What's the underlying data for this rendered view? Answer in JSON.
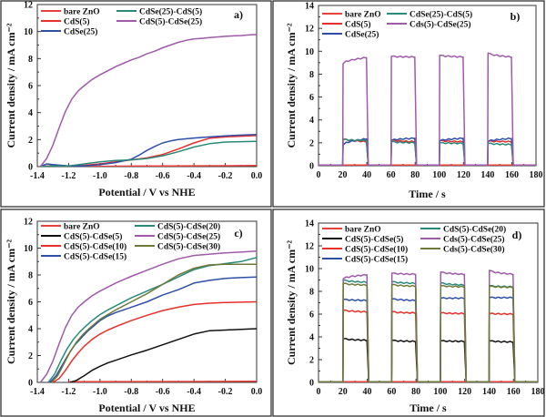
{
  "chart_data": [
    {
      "id": "a",
      "type": "line",
      "panel_label": "a)",
      "xlabel": "Potential / V vs NHE",
      "ylabel": "Current density / mA cm⁻²",
      "xlim": [
        -1.4,
        0.0
      ],
      "ylim": [
        0,
        12
      ],
      "xticks": [
        -1.4,
        -1.2,
        -1.0,
        -0.8,
        -0.6,
        -0.4,
        -0.2,
        0.0
      ],
      "xtick_labels": [
        "-1.4",
        "-1.2",
        "-1.0",
        "-0.8",
        "-0.6",
        "-0.4",
        "-0.2",
        "0.0"
      ],
      "yticks": [
        0,
        2,
        4,
        6,
        8,
        10,
        12
      ],
      "ytick_labels": [
        "0",
        "2",
        "4",
        "6",
        "8",
        "10",
        "12"
      ],
      "legend_position": "top-left",
      "legend_columns": 2,
      "series": [
        {
          "name": "bare ZnO",
          "color": "#e8413c",
          "x": [
            -1.38,
            -1.2,
            -1.0,
            -0.8,
            -0.6,
            -0.4,
            -0.2,
            0.0
          ],
          "y": [
            0.0,
            0.02,
            0.03,
            0.04,
            0.05,
            0.06,
            0.07,
            0.08
          ]
        },
        {
          "name": "CdS(5)",
          "color": "#e8302a",
          "x": [
            -1.38,
            -1.3,
            -1.2,
            -1.1,
            -1.0,
            -0.9,
            -0.8,
            -0.7,
            -0.6,
            -0.5,
            -0.4,
            -0.3,
            -0.2,
            -0.1,
            0.0
          ],
          "y": [
            0.0,
            0.08,
            0.05,
            0.1,
            0.2,
            0.35,
            0.5,
            0.65,
            0.9,
            1.3,
            1.75,
            2.1,
            2.2,
            2.25,
            2.3
          ]
        },
        {
          "name": "CdSe(25)",
          "color": "#2e4fa8",
          "x": [
            -1.38,
            -1.34,
            -1.3,
            -1.2,
            -1.1,
            -1.0,
            -0.9,
            -0.8,
            -0.75,
            -0.7,
            -0.65,
            -0.6,
            -0.55,
            -0.5,
            -0.4,
            -0.3,
            -0.2,
            -0.1,
            0.0
          ],
          "y": [
            0.0,
            0.2,
            0.15,
            0.05,
            0.05,
            0.15,
            0.3,
            0.55,
            0.85,
            1.2,
            1.5,
            1.75,
            1.9,
            2.0,
            2.12,
            2.2,
            2.28,
            2.33,
            2.38
          ]
        },
        {
          "name": "CdSe(25)-CdS(5)",
          "color": "#2a8a7a",
          "x": [
            -1.38,
            -1.3,
            -1.2,
            -1.1,
            -1.0,
            -0.9,
            -0.8,
            -0.7,
            -0.6,
            -0.5,
            -0.4,
            -0.3,
            -0.2,
            -0.1,
            0.0
          ],
          "y": [
            0.0,
            0.05,
            0.05,
            0.2,
            0.35,
            0.45,
            0.5,
            0.6,
            0.8,
            1.1,
            1.45,
            1.7,
            1.82,
            1.85,
            1.87
          ]
        },
        {
          "name": "CdS(5)-CdSe(25)",
          "color": "#a05aaa",
          "x": [
            -1.38,
            -1.34,
            -1.3,
            -1.26,
            -1.22,
            -1.18,
            -1.14,
            -1.1,
            -1.05,
            -1.0,
            -0.95,
            -0.9,
            -0.85,
            -0.8,
            -0.75,
            -0.7,
            -0.65,
            -0.6,
            -0.55,
            -0.5,
            -0.45,
            -0.4,
            -0.35,
            -0.3,
            -0.25,
            -0.2,
            -0.15,
            -0.1,
            -0.05,
            0.0
          ],
          "y": [
            0.0,
            0.6,
            1.6,
            2.9,
            4.1,
            5.0,
            5.6,
            6.0,
            6.45,
            6.8,
            7.1,
            7.4,
            7.65,
            7.9,
            8.1,
            8.35,
            8.55,
            8.8,
            9.0,
            9.2,
            9.35,
            9.45,
            9.5,
            9.55,
            9.6,
            9.65,
            9.68,
            9.7,
            9.75,
            9.78
          ]
        }
      ]
    },
    {
      "id": "b",
      "type": "line",
      "panel_label": "b)",
      "xlabel": "Time / s",
      "ylabel": "Current density / mA cm⁻²",
      "xlim": [
        0,
        180
      ],
      "ylim": [
        0,
        14
      ],
      "xticks": [
        0,
        20,
        40,
        60,
        80,
        100,
        120,
        140,
        160,
        180
      ],
      "xtick_labels": [
        "0",
        "20",
        "40",
        "60",
        "80",
        "100",
        "120",
        "140",
        "160",
        "180"
      ],
      "yticks": [
        0,
        2,
        4,
        6,
        8,
        10,
        12,
        14
      ],
      "ytick_labels": [
        "0",
        "2",
        "4",
        "6",
        "8",
        "10",
        "12",
        "14"
      ],
      "legend_position": "top-left",
      "legend_columns": 2,
      "pulse_on": [
        [
          20,
          40
        ],
        [
          60,
          80
        ],
        [
          100,
          120
        ],
        [
          140,
          160
        ]
      ],
      "series": [
        {
          "name": "bare ZnO",
          "color": "#e8413c",
          "on_start": [
            0.06,
            0.06,
            0.06,
            0.06
          ],
          "on_end": [
            0.06,
            0.06,
            0.06,
            0.06
          ]
        },
        {
          "name": "CdS(5)",
          "color": "#e8302a",
          "on_start": [
            2.35,
            2.25,
            2.2,
            2.15
          ],
          "on_end": [
            2.1,
            2.1,
            2.1,
            2.1
          ]
        },
        {
          "name": "CdSe(25)",
          "color": "#2e4fa8",
          "on_start": [
            1.8,
            2.2,
            2.15,
            2.1
          ],
          "on_end": [
            2.35,
            2.4,
            2.4,
            2.38
          ]
        },
        {
          "name": "CdSe(25)-CdS(5)",
          "color": "#2a8a7a",
          "on_start": [
            2.3,
            2.1,
            2.0,
            1.95
          ],
          "on_end": [
            2.2,
            2.0,
            1.95,
            1.85
          ]
        },
        {
          "name": "Cds(5)-CdSe(25)",
          "color": "#a05aaa",
          "on_start": [
            8.9,
            9.55,
            9.65,
            9.85
          ],
          "on_end": [
            9.45,
            9.5,
            9.5,
            9.5
          ]
        }
      ]
    },
    {
      "id": "c",
      "type": "line",
      "panel_label": "c)",
      "xlabel": "Potential / V vs NHE",
      "ylabel": "Current density / mA cm⁻²",
      "xlim": [
        -1.4,
        0.0
      ],
      "ylim": [
        0,
        12
      ],
      "xticks": [
        -1.4,
        -1.2,
        -1.0,
        -0.8,
        -0.6,
        -0.4,
        -0.2,
        0.0
      ],
      "xtick_labels": [
        "-1.4",
        "-1.2",
        "-1.0",
        "-0.8",
        "-0.6",
        "-0.4",
        "-0.2",
        "0.0"
      ],
      "yticks": [
        0,
        2,
        4,
        6,
        8,
        10,
        12
      ],
      "ytick_labels": [
        "0",
        "2",
        "4",
        "6",
        "8",
        "10",
        "12"
      ],
      "legend_position": "top-left",
      "legend_columns": 2,
      "series": [
        {
          "name": "bare ZnO",
          "color": "#e8413c",
          "x": [
            -1.2,
            -0.8,
            -0.4,
            0.0
          ],
          "y": [
            0.05,
            0.06,
            0.07,
            0.08
          ]
        },
        {
          "name": "CdS(5)-CdSe(5)",
          "color": "#111111",
          "x": [
            -1.19,
            -1.15,
            -1.1,
            -1.05,
            -1.0,
            -0.95,
            -0.9,
            -0.8,
            -0.7,
            -0.6,
            -0.5,
            -0.4,
            -0.3,
            -0.2,
            -0.1,
            0.0
          ],
          "y": [
            0.0,
            0.15,
            0.5,
            0.9,
            1.2,
            1.45,
            1.65,
            2.05,
            2.4,
            2.8,
            3.2,
            3.6,
            3.85,
            3.9,
            3.95,
            4.0
          ]
        },
        {
          "name": "CdS(5)-CdSe(10)",
          "color": "#e8302a",
          "x": [
            -1.3,
            -1.26,
            -1.22,
            -1.18,
            -1.14,
            -1.1,
            -1.05,
            -1.0,
            -0.95,
            -0.9,
            -0.8,
            -0.7,
            -0.6,
            -0.5,
            -0.4,
            -0.3,
            -0.2,
            -0.1,
            0.0
          ],
          "y": [
            0.0,
            0.3,
            0.9,
            1.6,
            2.2,
            2.7,
            3.2,
            3.6,
            3.9,
            4.15,
            4.6,
            5.0,
            5.35,
            5.6,
            5.8,
            5.9,
            5.95,
            5.97,
            6.0
          ]
        },
        {
          "name": "CdS(5)-CdSe(15)",
          "color": "#2e4fa8",
          "x": [
            -1.32,
            -1.28,
            -1.24,
            -1.2,
            -1.16,
            -1.12,
            -1.08,
            -1.04,
            -1.0,
            -0.95,
            -0.9,
            -0.85,
            -0.8,
            -0.7,
            -0.6,
            -0.5,
            -0.4,
            -0.3,
            -0.2,
            -0.1,
            0.0
          ],
          "y": [
            0.0,
            0.5,
            1.3,
            2.1,
            2.8,
            3.3,
            3.8,
            4.2,
            4.6,
            4.95,
            5.2,
            5.4,
            5.6,
            6.0,
            6.5,
            6.9,
            7.4,
            7.6,
            7.75,
            7.8,
            7.85
          ]
        },
        {
          "name": "CdS(5)-CdSe(20)",
          "color": "#2a8a7a",
          "x": [
            -1.33,
            -1.29,
            -1.25,
            -1.21,
            -1.17,
            -1.13,
            -1.09,
            -1.05,
            -1.0,
            -0.95,
            -0.9,
            -0.8,
            -0.7,
            -0.6,
            -0.5,
            -0.4,
            -0.3,
            -0.2,
            -0.1,
            0.0
          ],
          "y": [
            0.0,
            0.6,
            1.6,
            2.5,
            3.2,
            3.75,
            4.2,
            4.6,
            5.05,
            5.4,
            5.7,
            6.3,
            6.8,
            7.3,
            7.85,
            8.4,
            8.7,
            8.85,
            9.0,
            9.3
          ]
        },
        {
          "name": "CdS(5)-CdSe(25)",
          "color": "#a05aaa",
          "x": [
            -1.38,
            -1.34,
            -1.3,
            -1.26,
            -1.22,
            -1.18,
            -1.14,
            -1.1,
            -1.05,
            -1.0,
            -0.95,
            -0.9,
            -0.85,
            -0.8,
            -0.7,
            -0.6,
            -0.5,
            -0.4,
            -0.3,
            -0.2,
            -0.1,
            0.0
          ],
          "y": [
            0.0,
            0.6,
            1.6,
            2.9,
            4.1,
            5.0,
            5.6,
            6.0,
            6.45,
            6.8,
            7.1,
            7.4,
            7.65,
            7.9,
            8.35,
            8.8,
            9.2,
            9.45,
            9.55,
            9.65,
            9.7,
            9.78
          ]
        },
        {
          "name": "CdS(5)-CdSe(30)",
          "color": "#6f7a3a",
          "x": [
            -1.31,
            -1.27,
            -1.23,
            -1.19,
            -1.15,
            -1.11,
            -1.07,
            -1.03,
            -1.0,
            -0.95,
            -0.9,
            -0.8,
            -0.7,
            -0.6,
            -0.5,
            -0.4,
            -0.3,
            -0.2,
            -0.1,
            0.0
          ],
          "y": [
            0.0,
            0.5,
            1.4,
            2.3,
            3.0,
            3.55,
            4.0,
            4.4,
            4.7,
            5.05,
            5.4,
            6.0,
            6.6,
            7.3,
            8.0,
            8.5,
            8.75,
            8.8,
            8.8,
            8.8
          ]
        }
      ]
    },
    {
      "id": "d",
      "type": "line",
      "panel_label": "d)",
      "xlabel": "Time / s",
      "ylabel": "Current density / mA cm⁻²",
      "xlim": [
        0,
        180
      ],
      "ylim": [
        0,
        14
      ],
      "xticks": [
        0,
        20,
        40,
        60,
        80,
        100,
        120,
        140,
        160,
        180
      ],
      "xtick_labels": [
        "0",
        "20",
        "40",
        "60",
        "80",
        "100",
        "120",
        "140",
        "160",
        "180"
      ],
      "yticks": [
        0,
        2,
        4,
        6,
        8,
        10,
        12,
        14
      ],
      "ytick_labels": [
        "0",
        "2",
        "4",
        "6",
        "8",
        "10",
        "12",
        "14"
      ],
      "legend_position": "top-left",
      "legend_columns": 2,
      "pulse_on": [
        [
          20,
          40
        ],
        [
          60,
          80
        ],
        [
          100,
          120
        ],
        [
          140,
          160
        ]
      ],
      "series": [
        {
          "name": "bare ZnO",
          "color": "#e8413c",
          "on_start": [
            0.06,
            0.06,
            0.06,
            0.06
          ],
          "on_end": [
            0.06,
            0.06,
            0.06,
            0.06
          ]
        },
        {
          "name": "CdS(5)-CdSe(5)",
          "color": "#111111",
          "on_start": [
            3.85,
            3.7,
            3.65,
            3.65
          ],
          "on_end": [
            3.7,
            3.6,
            3.6,
            3.55
          ]
        },
        {
          "name": "CdS(5)-CdSe(10)",
          "color": "#e8302a",
          "on_start": [
            6.35,
            6.2,
            6.1,
            6.05
          ],
          "on_end": [
            6.2,
            6.1,
            6.05,
            6.0
          ]
        },
        {
          "name": "CdS(5)-CdSe(15)",
          "color": "#2e4fa8",
          "on_start": [
            7.3,
            7.35,
            7.4,
            7.45
          ],
          "on_end": [
            7.2,
            7.2,
            7.4,
            7.45
          ]
        },
        {
          "name": "CdS(5)-CdSe(20)",
          "color": "#2a8a7a",
          "on_start": [
            9.0,
            8.85,
            8.75,
            8.5
          ],
          "on_end": [
            8.8,
            8.7,
            8.55,
            8.4
          ]
        },
        {
          "name": "Cds(5)-CdSe(25)",
          "color": "#a05aaa",
          "on_start": [
            9.1,
            9.6,
            9.7,
            9.85
          ],
          "on_end": [
            9.45,
            9.5,
            9.5,
            9.5
          ]
        },
        {
          "name": "Cds(5)-CdSe(30)",
          "color": "#6f7a3a",
          "on_start": [
            8.7,
            8.6,
            8.5,
            8.45
          ],
          "on_end": [
            8.55,
            8.45,
            8.4,
            8.35
          ]
        }
      ]
    }
  ]
}
